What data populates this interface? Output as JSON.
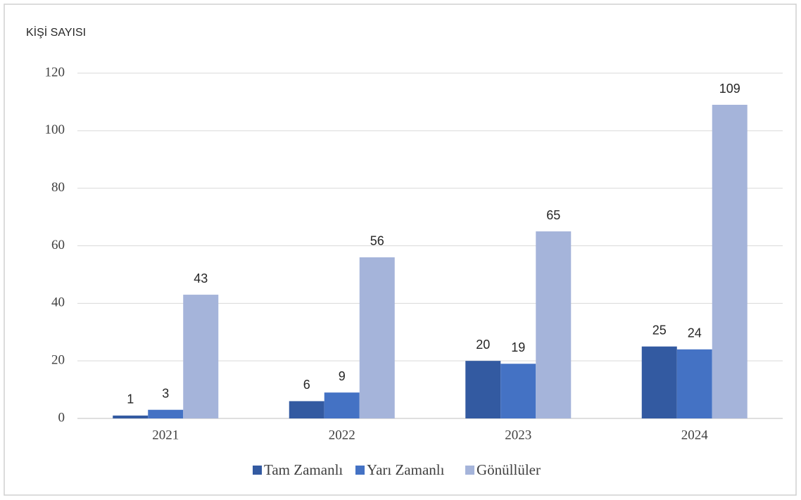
{
  "chart_data": {
    "type": "bar",
    "y_axis_label": "KİŞİ SAYISI",
    "categories": [
      "2021",
      "2022",
      "2023",
      "2024"
    ],
    "series": [
      {
        "name": "Tam Zamanlı",
        "color": "#335aa1",
        "values": [
          1,
          6,
          20,
          25
        ]
      },
      {
        "name": "Yarı Zamanlı",
        "color": "#4472c4",
        "values": [
          3,
          9,
          19,
          24
        ]
      },
      {
        "name": "Gönüllüler",
        "color": "#a5b4da",
        "values": [
          43,
          56,
          65,
          109
        ]
      }
    ],
    "ylim": [
      0,
      120
    ],
    "yticks": [
      0,
      20,
      40,
      60,
      80,
      100,
      120
    ],
    "grid": true,
    "legend": "bottom"
  }
}
